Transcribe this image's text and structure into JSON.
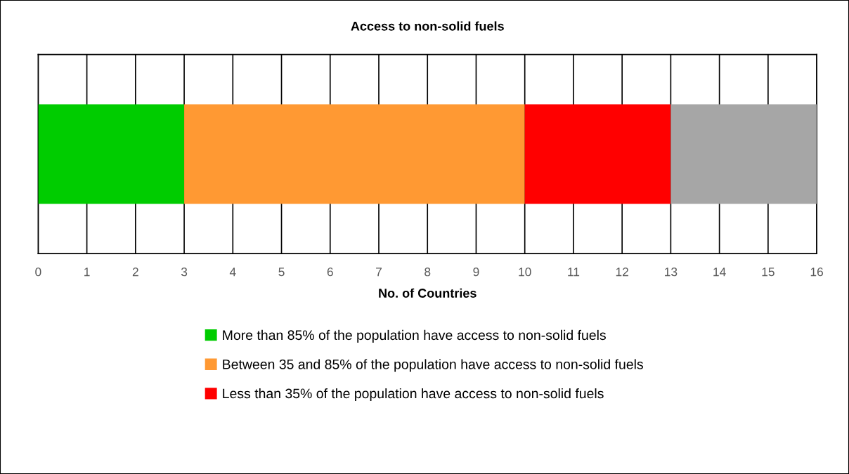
{
  "chart_data": {
    "type": "bar",
    "orientation": "horizontal",
    "stacked": true,
    "title": "Access to non-solid fuels",
    "xlabel": "No. of Countries",
    "categories": [
      null
    ],
    "series": [
      {
        "name": "More than 85% of the population have access to non-solid fuels",
        "color": "#00cc00",
        "values": [
          3
        ]
      },
      {
        "name": "Between 35 and 85% of the population have access to non-solid fuels",
        "color": "#ff9933",
        "values": [
          7
        ]
      },
      {
        "name": "Less than 35% of the population have access to non-solid fuels",
        "color": "#ff0000",
        "values": [
          3
        ]
      },
      {
        "color": "#a6a6a6",
        "values": [
          3
        ]
      }
    ],
    "xlim": [
      0,
      16
    ],
    "xticks": [
      0,
      1,
      2,
      3,
      4,
      5,
      6,
      7,
      8,
      9,
      10,
      11,
      12,
      13,
      14,
      15,
      16
    ],
    "grid": "x",
    "legend": "bottom",
    "tick_labels": "x"
  }
}
